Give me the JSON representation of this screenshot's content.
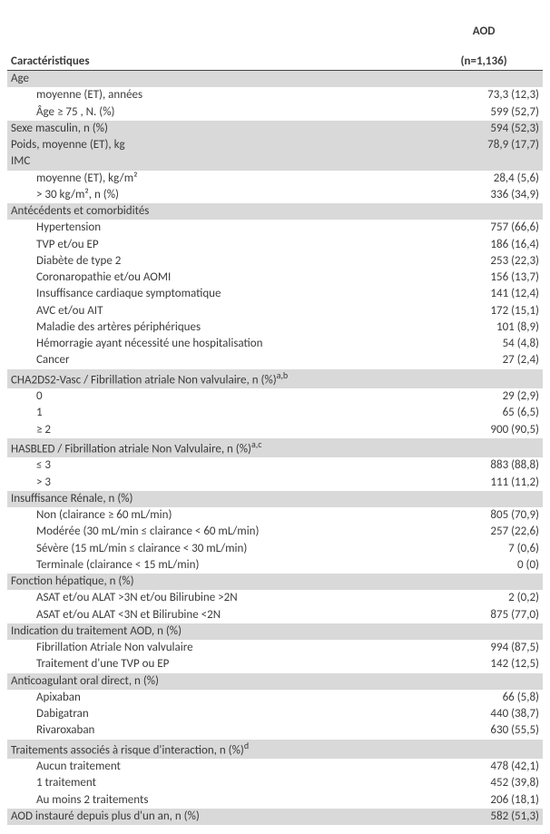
{
  "header": {
    "characteristics": "Caractéristiques",
    "col_line1": "AOD",
    "col_line2": "(n=1,136)"
  },
  "sections": [
    {
      "title": "Age",
      "rows": [
        {
          "label": "moyenne (ET), années",
          "value": "73,3 (12,3)"
        },
        {
          "label": "Âge ≥ 75 , N. (%)",
          "value": "599 (52,7)"
        }
      ]
    },
    {
      "title": "Sexe masculin, n (%)",
      "value": "594 (52,3)"
    },
    {
      "title": "Poids, moyenne (ET), kg",
      "value": "78,9 (17,7)"
    },
    {
      "title": "IMC",
      "rows": [
        {
          "label": "moyenne (ET), kg/m²",
          "value": "28,4 (5,6)"
        },
        {
          "label": "> 30 kg/m², n (%)",
          "value": "336 (34,9)"
        }
      ]
    },
    {
      "title": "Antécédents et comorbidités",
      "rows": [
        {
          "label": "Hypertension",
          "value": "757 (66,6)"
        },
        {
          "label": "TVP et/ou EP",
          "value": "186 (16,4)"
        },
        {
          "label": "Diabète de type 2",
          "value": "253 (22,3)"
        },
        {
          "label": "Coronaropathie et/ou AOMI",
          "value": "156 (13,7)"
        },
        {
          "label": "Insuffisance cardiaque symptomatique",
          "value": "141 (12,4)"
        },
        {
          "label": "AVC et/ou AIT",
          "value": "172 (15,1)"
        },
        {
          "label": "Maladie des artères périphériques",
          "value": "101 (8,9)"
        },
        {
          "label": "Hémorragie ayant nécessité une hospitalisation",
          "value": "54 (4,8)"
        },
        {
          "label": "Cancer",
          "value": "27 (2,4)"
        }
      ]
    },
    {
      "title": "CHA2DS2-Vasc / Fibrillation atriale Non valvulaire, n (%)",
      "sup": "a,b",
      "rows": [
        {
          "label": "0",
          "value": "29 (2,9)"
        },
        {
          "label": "1",
          "value": "65 (6,5)"
        },
        {
          "label": "≥ 2",
          "value": "900 (90,5)"
        }
      ]
    },
    {
      "title": "HASBLED / Fibrillation atriale Non Valvulaire, n (%)",
      "sup": "a,c",
      "rows": [
        {
          "label": "≤ 3",
          "value": "883 (88,8)"
        },
        {
          "label": "> 3",
          "value": "111 (11,2)"
        }
      ]
    },
    {
      "title": "Insuffisance Rénale, n (%)",
      "rows": [
        {
          "label": "Non (clairance ≥ 60 mL/min)",
          "value": "805 (70,9)"
        },
        {
          "label": "Modérée (30 mL/min ≤ clairance < 60 mL/min)",
          "value": "257 (22,6)"
        },
        {
          "label": "Sévère (15 mL/min ≤ clairance < 30 mL/min)",
          "value": "7 (0,6)"
        },
        {
          "label": "Terminale (clairance < 15 mL/min)",
          "value": "0 (0)"
        }
      ]
    },
    {
      "title": "Fonction hépatique, n (%)",
      "rows": [
        {
          "label": "ASAT et/ou ALAT >3N et/ou Bilirubine >2N",
          "value": "2 (0,2)"
        },
        {
          "label": "ASAT et/ou ALAT  <3N et Bilirubine <2N",
          "value": "875 (77,0)"
        }
      ]
    },
    {
      "title": "Indication du traitement AOD, n (%)",
      "rows": [
        {
          "label": "Fibrillation Atriale Non valvulaire",
          "value": "994 (87,5)"
        },
        {
          "label": "Traitement d'une TVP ou EP",
          "value": "142 (12,5)"
        }
      ]
    },
    {
      "title": "Anticoagulant oral direct, n (%)",
      "rows": [
        {
          "label": "Apixaban",
          "value": "66 (5,8)"
        },
        {
          "label": "Dabigatran",
          "value": "440 (38,7)"
        },
        {
          "label": "Rivaroxaban",
          "value": "630 (55,5)"
        }
      ]
    },
    {
      "title": "Traitements associés à risque d'interaction, n (%)",
      "sup": "d",
      "rows": [
        {
          "label": "Aucun traitement",
          "value": "478 (42,1)"
        },
        {
          "label": "1 traitement",
          "value": "452 (39,8)"
        },
        {
          "label": "Au moins 2 traitements",
          "value": "206 (18,1)"
        }
      ]
    },
    {
      "title": "AOD instauré depuis plus d'un an, n (%)",
      "value": "582 (51,3)"
    }
  ]
}
